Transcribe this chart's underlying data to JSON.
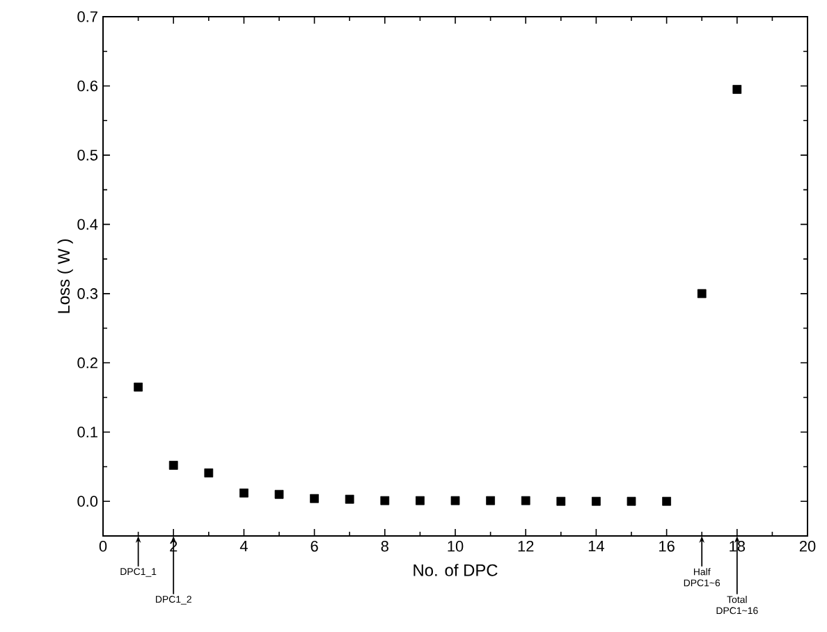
{
  "chart_data": {
    "type": "scatter",
    "xlabel": "No. of DPC",
    "ylabel": "Loss ( W )",
    "x": [
      1,
      2,
      3,
      4,
      5,
      6,
      7,
      8,
      9,
      10,
      11,
      12,
      13,
      14,
      15,
      16,
      17,
      18
    ],
    "values": [
      0.165,
      0.052,
      0.041,
      0.012,
      0.01,
      0.004,
      0.003,
      0.001,
      0.001,
      0.001,
      0.001,
      0.001,
      0.0,
      0.0,
      0.0,
      0.0,
      0.3,
      0.595
    ],
    "color": "#000000",
    "marker": "square",
    "xlim": [
      0,
      20
    ],
    "ylim": [
      -0.05,
      0.7
    ],
    "xticks": [
      0,
      2,
      4,
      6,
      8,
      10,
      12,
      14,
      16,
      18,
      20
    ],
    "yticks": [
      {
        "value": 0,
        "label": "0.0"
      },
      {
        "value": 0.1,
        "label": "0.1"
      },
      {
        "value": 0.2,
        "label": "0.2"
      },
      {
        "value": 0.3,
        "label": "0.3"
      },
      {
        "value": 0.4,
        "label": "0.4"
      },
      {
        "value": 0.5,
        "label": "0.5"
      },
      {
        "value": 0.6,
        "label": "0.6"
      },
      {
        "value": 0.7,
        "label": "0.7"
      }
    ],
    "annotations": [
      {
        "text": "DPC1_1",
        "x": 1
      },
      {
        "text": "DPC1_2",
        "x": 2
      },
      {
        "text": "Half DPC1~6",
        "x": 17
      },
      {
        "text": "Total DPC1~16",
        "x": 18
      }
    ]
  }
}
